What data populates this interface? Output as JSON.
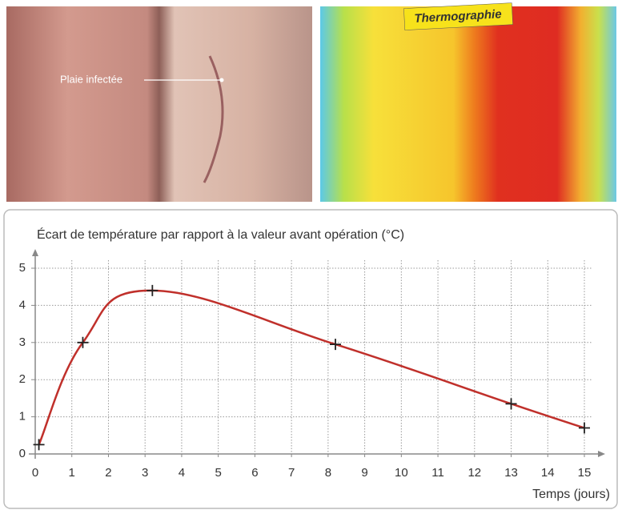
{
  "photos": {
    "wound_label": "Plaie infectée",
    "thermo_label": "Thermographie"
  },
  "chart_data": {
    "type": "line",
    "title": "Écart de température par rapport à la valeur avant opération (°C)",
    "x_label": "Temps (jours)",
    "x": [
      0.1,
      1.3,
      3.2,
      8.2,
      13,
      15
    ],
    "values": [
      0.25,
      3,
      4.4,
      2.95,
      1.35,
      0.7
    ],
    "color": "#c0302b",
    "xlim": [
      0,
      15
    ],
    "ylim": [
      0,
      5
    ],
    "xticks": [
      0,
      1,
      2,
      3,
      4,
      5,
      6,
      7,
      8,
      9,
      10,
      11,
      12,
      13,
      14,
      15
    ],
    "yticks": [
      0,
      1,
      2,
      3,
      4,
      5
    ],
    "grid": true
  }
}
